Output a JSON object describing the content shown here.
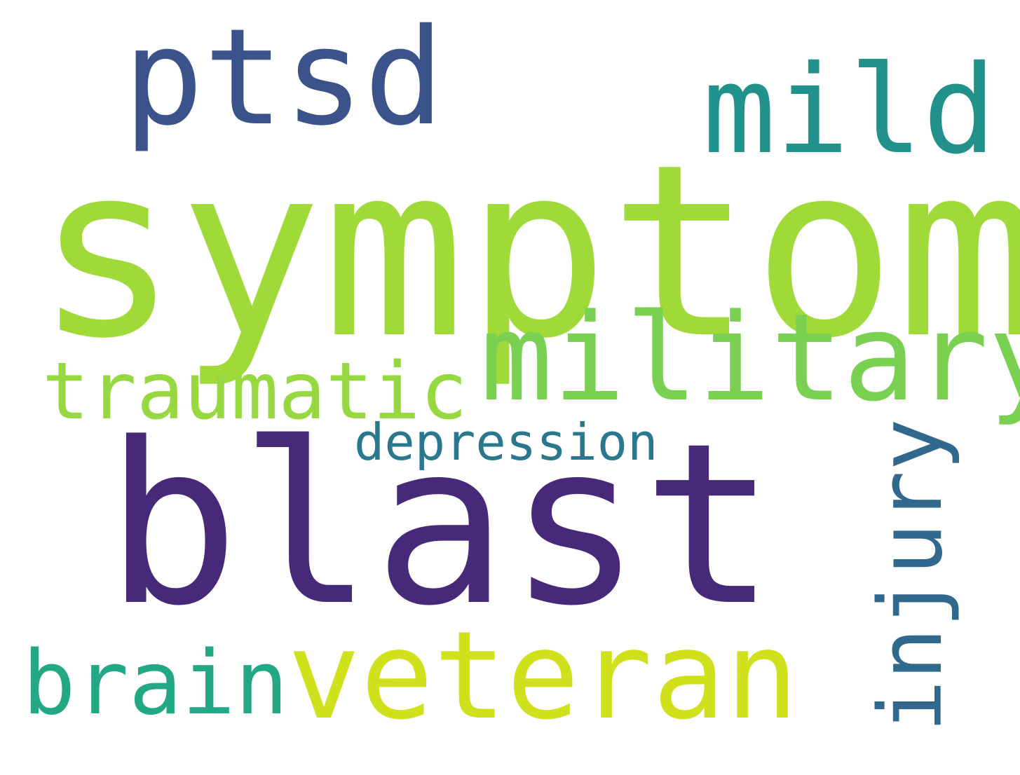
{
  "words": [
    {
      "id": "symptom",
      "text": "symptom",
      "color": "#a0da39",
      "orientation": "horizontal"
    },
    {
      "id": "blast",
      "text": "blast",
      "color": "#482878",
      "orientation": "horizontal"
    },
    {
      "id": "ptsd",
      "text": "ptsd",
      "color": "#3b528b",
      "orientation": "horizontal"
    },
    {
      "id": "mild",
      "text": "mild",
      "color": "#21918c",
      "orientation": "horizontal"
    },
    {
      "id": "military",
      "text": "military",
      "color": "#7ad151",
      "orientation": "horizontal"
    },
    {
      "id": "traumatic",
      "text": "traumatic",
      "color": "#95d840",
      "orientation": "horizontal"
    },
    {
      "id": "depression",
      "text": "depression",
      "color": "#2a788e",
      "orientation": "horizontal"
    },
    {
      "id": "veteran",
      "text": "veteran",
      "color": "#d0e11c",
      "orientation": "horizontal"
    },
    {
      "id": "brain",
      "text": "brain",
      "color": "#22a884",
      "orientation": "horizontal"
    },
    {
      "id": "injury",
      "text": "injury",
      "color": "#31688e",
      "orientation": "vertical"
    }
  ]
}
